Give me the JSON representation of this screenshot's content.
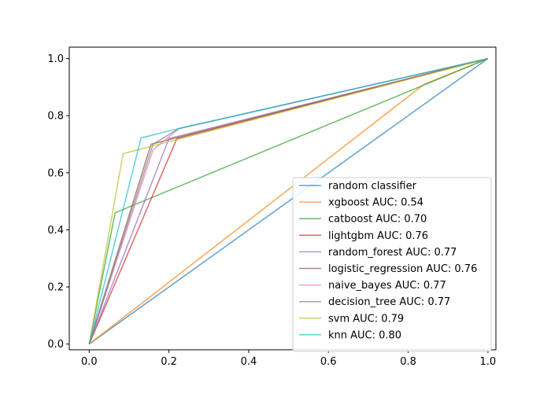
{
  "chart_data": {
    "type": "line",
    "title": "",
    "xlabel": "",
    "ylabel": "",
    "xlim": [
      -0.05,
      1.02
    ],
    "ylim": [
      -0.02,
      1.04
    ],
    "xticks": [
      "0.0",
      "0.2",
      "0.4",
      "0.6",
      "0.8",
      "1.0"
    ],
    "yticks": [
      "0.0",
      "0.2",
      "0.4",
      "0.6",
      "0.8",
      "1.0"
    ],
    "grid": false,
    "legend_position": "lower-right",
    "series": [
      {
        "name": "random classifier",
        "color": "#1f77b4",
        "x": [
          0,
          1
        ],
        "y": [
          0,
          1
        ]
      },
      {
        "name": "xgboost AUC: 0.54",
        "color": "#ff7f0e",
        "x": [
          0,
          0.84,
          1
        ],
        "y": [
          0,
          0.91,
          1
        ]
      },
      {
        "name": "catboost AUC: 0.70",
        "color": "#2ca02c",
        "x": [
          0,
          0.065,
          1
        ],
        "y": [
          0,
          0.46,
          1
        ]
      },
      {
        "name": "lightgbm AUC: 0.76",
        "color": "#d62728",
        "x": [
          0,
          0.22,
          1
        ],
        "y": [
          0,
          0.72,
          1
        ]
      },
      {
        "name": "random_forest AUC: 0.77",
        "color": "#9467bd",
        "x": [
          0,
          0.2,
          1
        ],
        "y": [
          0,
          0.72,
          1
        ]
      },
      {
        "name": "logistic_regression AUC: 0.76",
        "color": "#8c564b",
        "x": [
          0,
          0.155,
          1
        ],
        "y": [
          0,
          0.7,
          1
        ]
      },
      {
        "name": "naive_bayes AUC: 0.77",
        "color": "#e377c2",
        "x": [
          0,
          0.16,
          0.225,
          1
        ],
        "y": [
          0,
          0.68,
          0.755,
          1
        ]
      },
      {
        "name": "decision_tree AUC: 0.77",
        "color": "#7f7f7f",
        "x": [
          0,
          0.16,
          0.225,
          1
        ],
        "y": [
          0,
          0.7,
          0.755,
          1
        ]
      },
      {
        "name": "svm AUC: 0.79",
        "color": "#bcbd22",
        "x": [
          0,
          0.085,
          1
        ],
        "y": [
          0,
          0.667,
          1
        ]
      },
      {
        "name": "knn AUC: 0.80",
        "color": "#17becf",
        "x": [
          0,
          0.13,
          0.21,
          1
        ],
        "y": [
          0,
          0.722,
          0.75,
          1
        ]
      }
    ]
  }
}
